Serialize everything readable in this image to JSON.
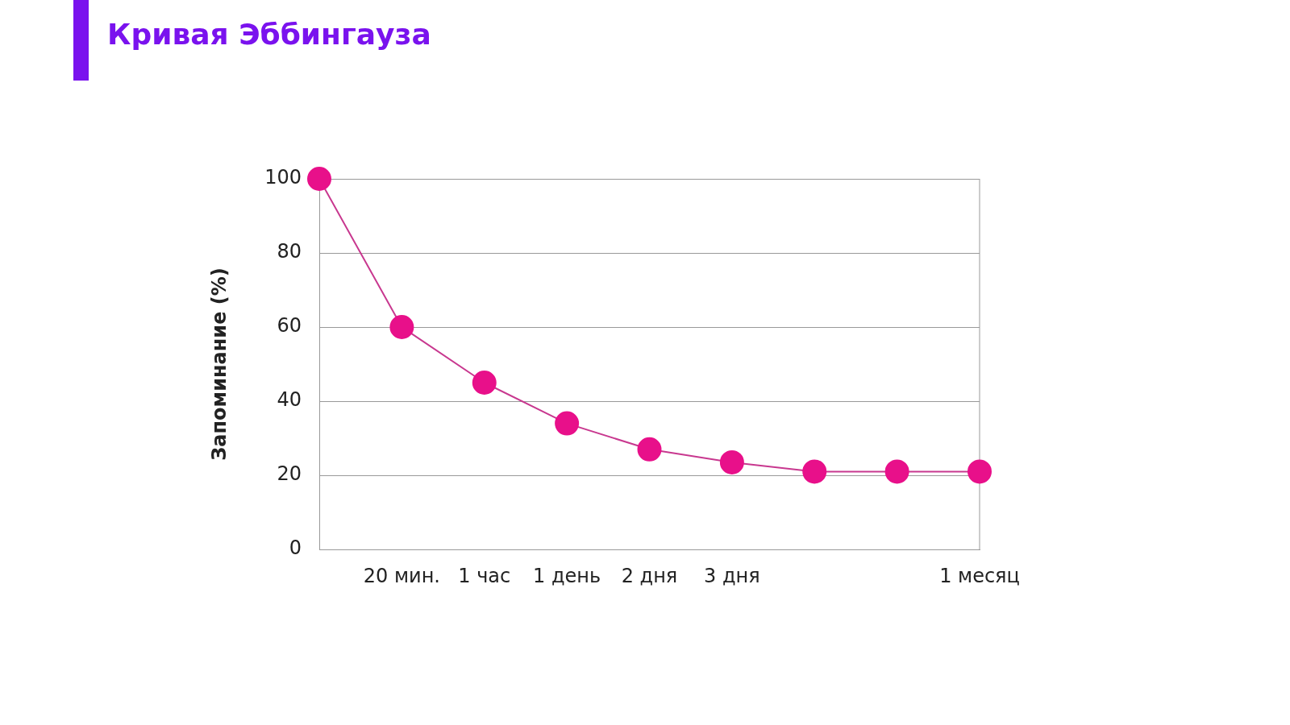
{
  "chart_data": {
    "type": "line",
    "title": "Кривая Эббингауза",
    "ylabel": "Запоминание (%)",
    "categories": [
      null,
      "20 мин.",
      "1 час",
      "1 день",
      "2 дня",
      "3 дня",
      null,
      null,
      "1 месяц"
    ],
    "series": [
      {
        "color": "#e8108a",
        "values": [
          100,
          60,
          45,
          34,
          27,
          23.5,
          21,
          21,
          21
        ]
      }
    ],
    "ylim": [
      0,
      100
    ],
    "yticks": [
      0,
      20,
      40,
      60,
      80,
      100
    ],
    "grid": "y",
    "legend": false,
    "marker": "circle",
    "line_style": "solid"
  }
}
